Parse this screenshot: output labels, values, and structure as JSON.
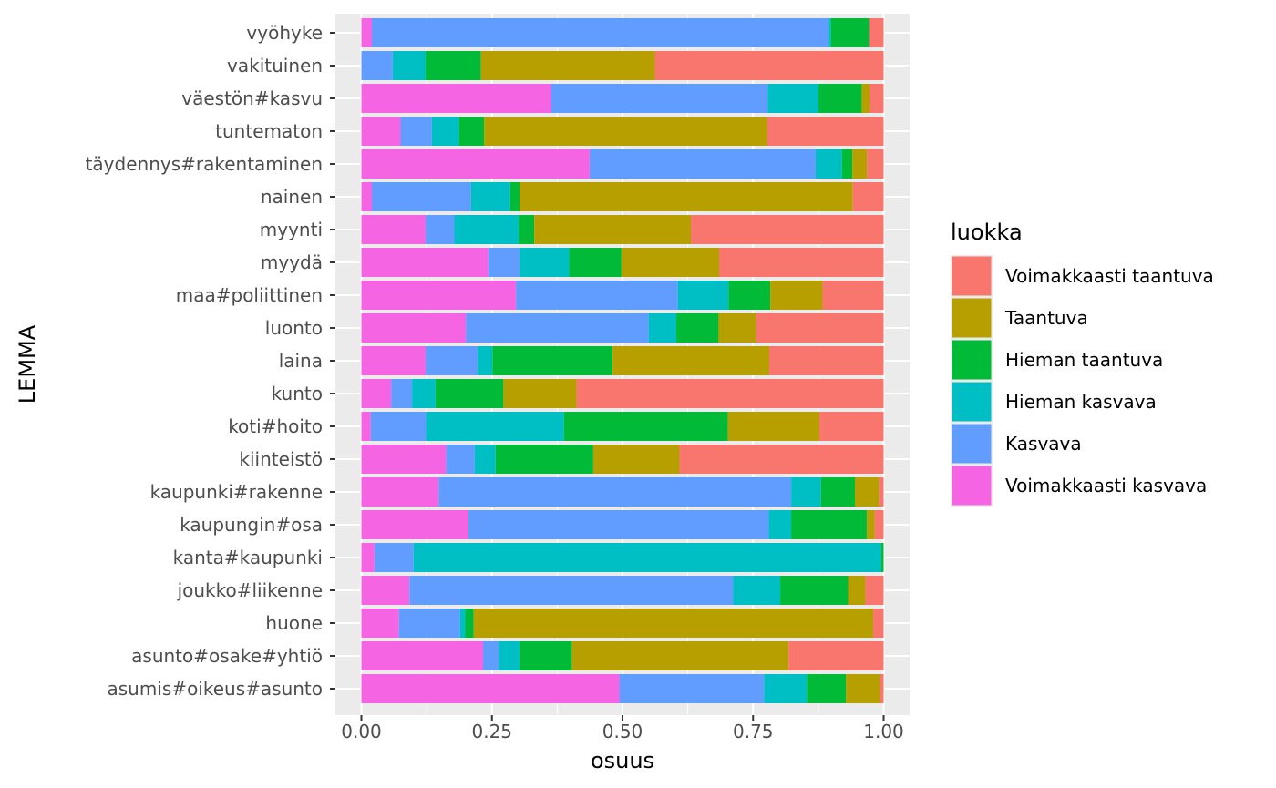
{
  "chart_data": {
    "type": "bar",
    "orientation": "horizontal",
    "stacked": true,
    "title": "",
    "xlabel": "osuus",
    "ylabel": "LEMMA",
    "xlim": [
      0,
      1
    ],
    "x_ticks": [
      "0.00",
      "0.25",
      "0.50",
      "0.75",
      "1.00"
    ],
    "grid": true,
    "legend_position": "right",
    "legend_title": "luokka",
    "categories": [
      "vyöhyke",
      "vakituinen",
      "väestön#kasvu",
      "tuntematon",
      "täydennys#rakentaminen",
      "nainen",
      "myynti",
      "myydä",
      "maa#poliittinen",
      "luonto",
      "laina",
      "kunto",
      "koti#hoito",
      "kiinteistö",
      "kaupunki#rakenne",
      "kaupungin#osa",
      "kanta#kaupunki",
      "joukko#liikenne",
      "huone",
      "asunto#osake#yhtiö",
      "asumis#oikeus#asunto"
    ],
    "series": [
      {
        "name": "Voimakkaasti kasvava",
        "color": "#F564E3",
        "values": [
          0.02,
          0.0,
          0.363,
          0.075,
          0.437,
          0.02,
          0.123,
          0.243,
          0.296,
          0.2,
          0.123,
          0.057,
          0.018,
          0.162,
          0.148,
          0.205,
          0.025,
          0.092,
          0.072,
          0.233,
          0.494
        ]
      },
      {
        "name": "Kasvava",
        "color": "#619CFF",
        "values": [
          0.875,
          0.06,
          0.415,
          0.06,
          0.433,
          0.19,
          0.055,
          0.06,
          0.31,
          0.35,
          0.1,
          0.04,
          0.106,
          0.055,
          0.675,
          0.575,
          0.075,
          0.62,
          0.117,
          0.03,
          0.277
        ]
      },
      {
        "name": "Hieman kasvava",
        "color": "#00BFC4",
        "values": [
          0.004,
          0.063,
          0.097,
          0.052,
          0.05,
          0.075,
          0.123,
          0.095,
          0.097,
          0.053,
          0.028,
          0.045,
          0.264,
          0.04,
          0.057,
          0.043,
          0.895,
          0.09,
          0.01,
          0.04,
          0.082
        ]
      },
      {
        "name": "Hieman taantuva",
        "color": "#00BA38",
        "values": [
          0.073,
          0.106,
          0.083,
          0.048,
          0.02,
          0.018,
          0.03,
          0.1,
          0.08,
          0.081,
          0.23,
          0.13,
          0.314,
          0.187,
          0.065,
          0.145,
          0.005,
          0.13,
          0.016,
          0.1,
          0.075
        ]
      },
      {
        "name": "Taantuva",
        "color": "#B79F00",
        "values": [
          0.0,
          0.333,
          0.015,
          0.542,
          0.028,
          0.638,
          0.3,
          0.187,
          0.1,
          0.072,
          0.3,
          0.14,
          0.175,
          0.165,
          0.046,
          0.015,
          0.0,
          0.033,
          0.765,
          0.415,
          0.065
        ]
      },
      {
        "name": "Voimakkaasti taantuva",
        "color": "#F8766D",
        "values": [
          0.028,
          0.438,
          0.027,
          0.223,
          0.032,
          0.059,
          0.369,
          0.315,
          0.117,
          0.244,
          0.219,
          0.588,
          0.123,
          0.391,
          0.009,
          0.017,
          0.0,
          0.035,
          0.02,
          0.182,
          0.007
        ]
      }
    ],
    "legend_order": [
      "Voimakkaasti taantuva",
      "Taantuva",
      "Hieman taantuva",
      "Hieman kasvava",
      "Kasvava",
      "Voimakkaasti kasvava"
    ]
  }
}
